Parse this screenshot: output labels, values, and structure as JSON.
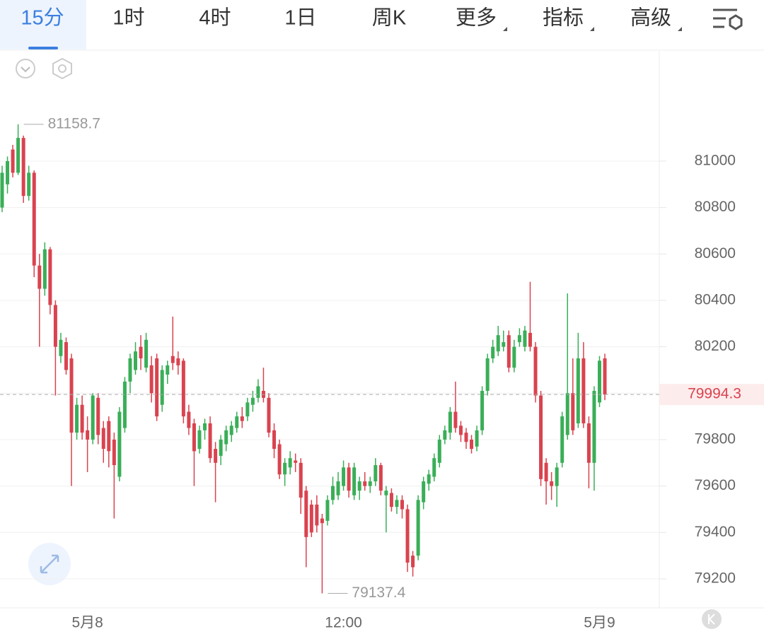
{
  "tabs": [
    "15分",
    "1时",
    "4时",
    "1日",
    "周K",
    "更多",
    "指标",
    "高级"
  ],
  "chart_data": {
    "type": "candlestick",
    "up_color": "#3aae58",
    "down_color": "#d9434f",
    "ylim": [
      79075,
      81475
    ],
    "yticks": [
      79200,
      79400,
      79600,
      79800,
      80000,
      80200,
      80400,
      80600,
      80800,
      81000
    ],
    "xticks": [
      {
        "value": 16,
        "label": "5月8"
      },
      {
        "value": 64,
        "label": "12:00"
      },
      {
        "value": 112,
        "label": "5月9"
      }
    ],
    "last_price": 79994.3,
    "candles": [
      [
        80800,
        80980,
        80780,
        80950
      ],
      [
        80900,
        81020,
        80860,
        81000
      ],
      [
        81050,
        81070,
        80930,
        80950
      ],
      [
        80950,
        81158.7,
        80940,
        81100
      ],
      [
        81100,
        81110,
        80820,
        80850
      ],
      [
        80850,
        80980,
        80830,
        80950
      ],
      [
        80950,
        80960,
        80500,
        80550
      ],
      [
        80550,
        80600,
        80200,
        80450
      ],
      [
        80450,
        80650,
        80420,
        80620
      ],
      [
        80620,
        80630,
        80340,
        80380
      ],
      [
        80380,
        80400,
        79990,
        80200
      ],
      [
        80160,
        80260,
        80130,
        80230
      ],
      [
        80220,
        80240,
        80080,
        80100
      ],
      [
        80150,
        80170,
        79600,
        79830
      ],
      [
        79830,
        79980,
        79800,
        79950
      ],
      [
        79950,
        79990,
        79800,
        79830
      ],
      [
        79840,
        79900,
        79660,
        79800
      ],
      [
        79800,
        80000,
        79780,
        79990
      ],
      [
        79980,
        80000,
        79780,
        79820
      ],
      [
        79850,
        79880,
        79700,
        79760
      ],
      [
        79880,
        79900,
        79680,
        79750
      ],
      [
        79800,
        79830,
        79460,
        79690
      ],
      [
        79640,
        79940,
        79620,
        79920
      ],
      [
        79850,
        80070,
        79830,
        80050
      ],
      [
        80050,
        80170,
        80000,
        80150
      ],
      [
        80100,
        80220,
        80080,
        80180
      ],
      [
        80200,
        80250,
        80100,
        80150
      ],
      [
        80110,
        80260,
        80090,
        80230
      ],
      [
        80120,
        80160,
        79960,
        80000
      ],
      [
        80150,
        80170,
        79880,
        79900
      ],
      [
        79950,
        80120,
        79920,
        80100
      ],
      [
        80080,
        80140,
        80040,
        80120
      ],
      [
        80160,
        80330,
        80100,
        80130
      ],
      [
        80150,
        80180,
        80080,
        80120
      ],
      [
        80140,
        80150,
        79870,
        79900
      ],
      [
        79920,
        79950,
        79820,
        79850
      ],
      [
        79870,
        79890,
        79600,
        79750
      ],
      [
        79760,
        79860,
        79740,
        79840
      ],
      [
        79840,
        79890,
        79800,
        79870
      ],
      [
        79870,
        79900,
        79700,
        79720
      ],
      [
        79760,
        79790,
        79530,
        79700
      ],
      [
        79730,
        79820,
        79690,
        79800
      ],
      [
        79780,
        79860,
        79750,
        79840
      ],
      [
        79820,
        79880,
        79790,
        79860
      ],
      [
        79850,
        79920,
        79830,
        79900
      ],
      [
        79900,
        79940,
        79850,
        79880
      ],
      [
        79900,
        79980,
        79880,
        79960
      ],
      [
        79950,
        80010,
        79920,
        79980
      ],
      [
        79980,
        80060,
        79960,
        80030
      ],
      [
        80010,
        80110,
        79960,
        79980
      ],
      [
        79980,
        80000,
        79810,
        79830
      ],
      [
        79840,
        79870,
        79720,
        79760
      ],
      [
        79780,
        79800,
        79630,
        79650
      ],
      [
        79650,
        79720,
        79600,
        79700
      ],
      [
        79680,
        79750,
        79650,
        79720
      ],
      [
        79710,
        79740,
        79660,
        79700
      ],
      [
        79700,
        79720,
        79480,
        79550
      ],
      [
        79580,
        79600,
        79250,
        79380
      ],
      [
        79520,
        79540,
        79380,
        79400
      ],
      [
        79520,
        79560,
        79400,
        79430
      ],
      [
        79460,
        79480,
        79137.4,
        79440
      ],
      [
        79450,
        79560,
        79430,
        79540
      ],
      [
        79540,
        79640,
        79520,
        79600
      ],
      [
        79560,
        79660,
        79540,
        79620
      ],
      [
        79600,
        79710,
        79580,
        79680
      ],
      [
        79680,
        79700,
        79550,
        79580
      ],
      [
        79560,
        79700,
        79540,
        79680
      ],
      [
        79580,
        79640,
        79540,
        79620
      ],
      [
        79620,
        79660,
        79580,
        79600
      ],
      [
        79600,
        79640,
        79570,
        79620
      ],
      [
        79620,
        79720,
        79600,
        79690
      ],
      [
        79690,
        79700,
        79560,
        79580
      ],
      [
        79560,
        79600,
        79400,
        79580
      ],
      [
        79570,
        79590,
        79490,
        79510
      ],
      [
        79510,
        79560,
        79480,
        79540
      ],
      [
        79540,
        79560,
        79460,
        79500
      ],
      [
        79500,
        79520,
        79230,
        79270
      ],
      [
        79300,
        79320,
        79210,
        79250
      ],
      [
        79300,
        79560,
        79280,
        79540
      ],
      [
        79530,
        79640,
        79500,
        79620
      ],
      [
        79610,
        79670,
        79580,
        79650
      ],
      [
        79640,
        79740,
        79620,
        79720
      ],
      [
        79700,
        79820,
        79680,
        79800
      ],
      [
        79800,
        79860,
        79780,
        79840
      ],
      [
        79830,
        79940,
        79800,
        79920
      ],
      [
        79920,
        80050,
        79830,
        79850
      ],
      [
        79860,
        79880,
        79790,
        79820
      ],
      [
        79830,
        79850,
        79760,
        79790
      ],
      [
        79800,
        79820,
        79740,
        79760
      ],
      [
        79770,
        79860,
        79750,
        79840
      ],
      [
        79840,
        80030,
        79820,
        80010
      ],
      [
        80010,
        80170,
        79990,
        80150
      ],
      [
        80150,
        80230,
        80130,
        80200
      ],
      [
        80180,
        80290,
        80160,
        80250
      ],
      [
        80200,
        80270,
        80180,
        80220
      ],
      [
        80250,
        80270,
        80090,
        80110
      ],
      [
        80110,
        80230,
        80090,
        80200
      ],
      [
        80220,
        80280,
        80200,
        80250
      ],
      [
        80200,
        80290,
        80180,
        80270
      ],
      [
        80260,
        80480,
        80180,
        80200
      ],
      [
        80200,
        80220,
        79960,
        79990
      ],
      [
        79990,
        80010,
        79600,
        79630
      ],
      [
        79700,
        79720,
        79520,
        79620
      ],
      [
        79620,
        79660,
        79540,
        79600
      ],
      [
        79600,
        79700,
        79510,
        79680
      ],
      [
        79700,
        79920,
        79680,
        79900
      ],
      [
        79820,
        80430,
        79800,
        80000
      ],
      [
        80000,
        80150,
        79820,
        79840
      ],
      [
        79870,
        80260,
        79850,
        80150
      ],
      [
        80150,
        80220,
        79850,
        79870
      ],
      [
        79870,
        79900,
        79590,
        79700
      ],
      [
        79700,
        80030,
        79580,
        80010
      ],
      [
        79960,
        80160,
        79940,
        80140
      ],
      [
        80150,
        80170,
        79970,
        79994.3
      ]
    ]
  }
}
